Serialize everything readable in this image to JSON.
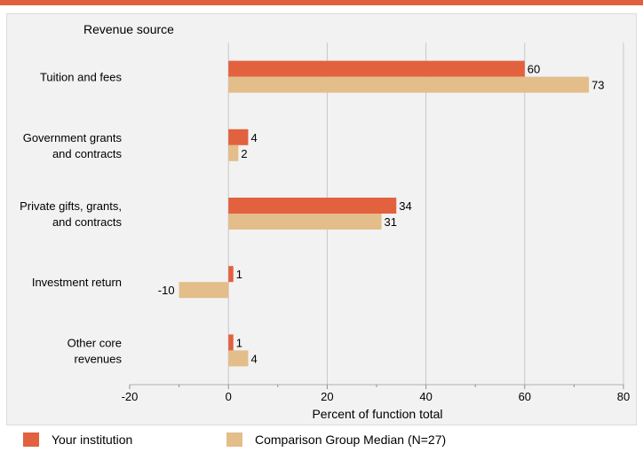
{
  "colors": {
    "top_rule": "#e0603c",
    "your_institution": "#e2613f",
    "comparison": "#e3bd8a",
    "grid": "#c8c8c8",
    "panel_bg": "#f2f2f2"
  },
  "chart_data": {
    "type": "bar",
    "orientation": "horizontal",
    "title": "",
    "category_axis_title": "Revenue source",
    "xlabel": "Percent of function total",
    "xlim": [
      -20,
      80
    ],
    "xticks": [
      -20,
      0,
      20,
      40,
      60,
      80
    ],
    "categories": [
      [
        "Tuition and fees"
      ],
      [
        "Government grants",
        "and contracts"
      ],
      [
        "Private gifts, grants,",
        "and contracts"
      ],
      [
        "Investment return"
      ],
      [
        "Other core",
        "revenues"
      ]
    ],
    "series": [
      {
        "name": "Your institution",
        "color": "#e2613f",
        "values": [
          60,
          4,
          34,
          1,
          1
        ]
      },
      {
        "name": "Comparison Group Median (N=27)",
        "color": "#e3bd8a",
        "values": [
          73,
          2,
          31,
          -10,
          4
        ]
      }
    ],
    "grid": true,
    "legend_position": "bottom"
  }
}
